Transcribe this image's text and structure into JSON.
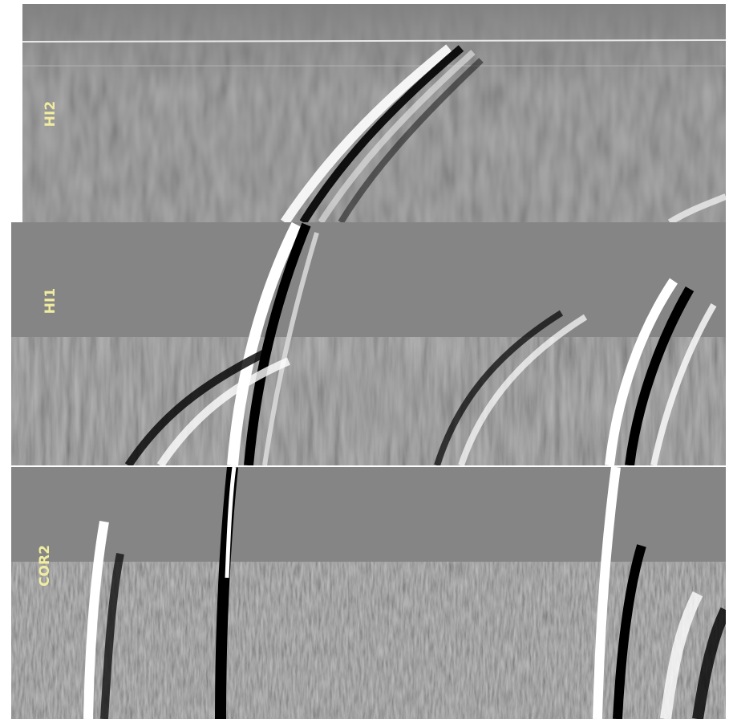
{
  "panels": [
    {
      "label": "HI2"
    },
    {
      "label": "HI1"
    },
    {
      "label": "COR2"
    }
  ]
}
